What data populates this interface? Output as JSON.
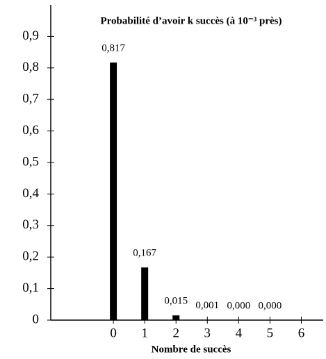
{
  "chart_data": {
    "type": "bar",
    "title": "Probabilité d’avoir k succès (à 10⁻³ près)",
    "x_label": "Nombre de succès",
    "x": [
      0,
      1,
      2,
      3,
      4,
      5
    ],
    "values": [
      0.817,
      0.167,
      0.015,
      0.001,
      0.0,
      0.0
    ],
    "value_labels": [
      "0,817",
      "0,167",
      "0,015",
      "0,001",
      "0,000",
      "0,000"
    ],
    "color": "#000000",
    "xlim": [
      -2,
      6.7
    ],
    "xticks": [
      0,
      1,
      2,
      3,
      4,
      5,
      6
    ],
    "ylim": [
      0,
      1
    ],
    "yticks": [
      0,
      {
        "value": 0.1,
        "label": "0,1"
      },
      {
        "value": 0.2,
        "label": "0,2"
      },
      {
        "value": 0.3,
        "label": "0,3"
      },
      {
        "value": 0.4,
        "label": "0,4"
      },
      {
        "value": 0.5,
        "label": "0,5"
      },
      {
        "value": 0.6,
        "label": "0,6"
      },
      {
        "value": 0.7,
        "label": "0,7"
      },
      {
        "value": 0.8,
        "label": "0,8"
      },
      {
        "value": 0.9,
        "label": "0,9"
      }
    ],
    "grid": false
  }
}
